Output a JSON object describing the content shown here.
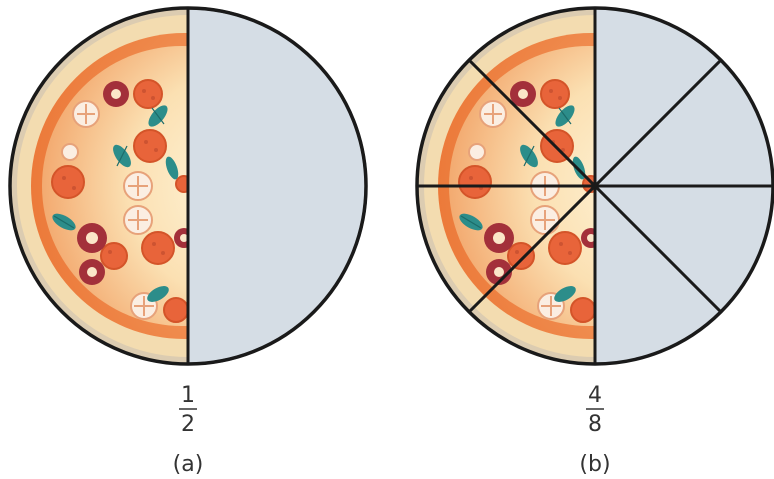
{
  "panels": [
    {
      "label": "(a)",
      "fraction": {
        "numerator": "1",
        "denominator": "2"
      },
      "slices": 2,
      "pizza_slices": 1
    },
    {
      "label": "(b)",
      "fraction": {
        "numerator": "4",
        "denominator": "8"
      },
      "slices": 8,
      "pizza_slices": 4
    }
  ],
  "colors": {
    "empty_half": "#d5dde5",
    "outline": "#1a1a1a",
    "crust_outer": "#f3dcb0",
    "crust_shadow": "#b9b3a8",
    "sauce": "#f08a3e",
    "cheese": "#fbe3b8",
    "pepperoni": "#e06a3a",
    "olive": "#a3303a",
    "basil": "#2c8d8a",
    "mushroom": "#fbeee2",
    "text": "#333333"
  }
}
